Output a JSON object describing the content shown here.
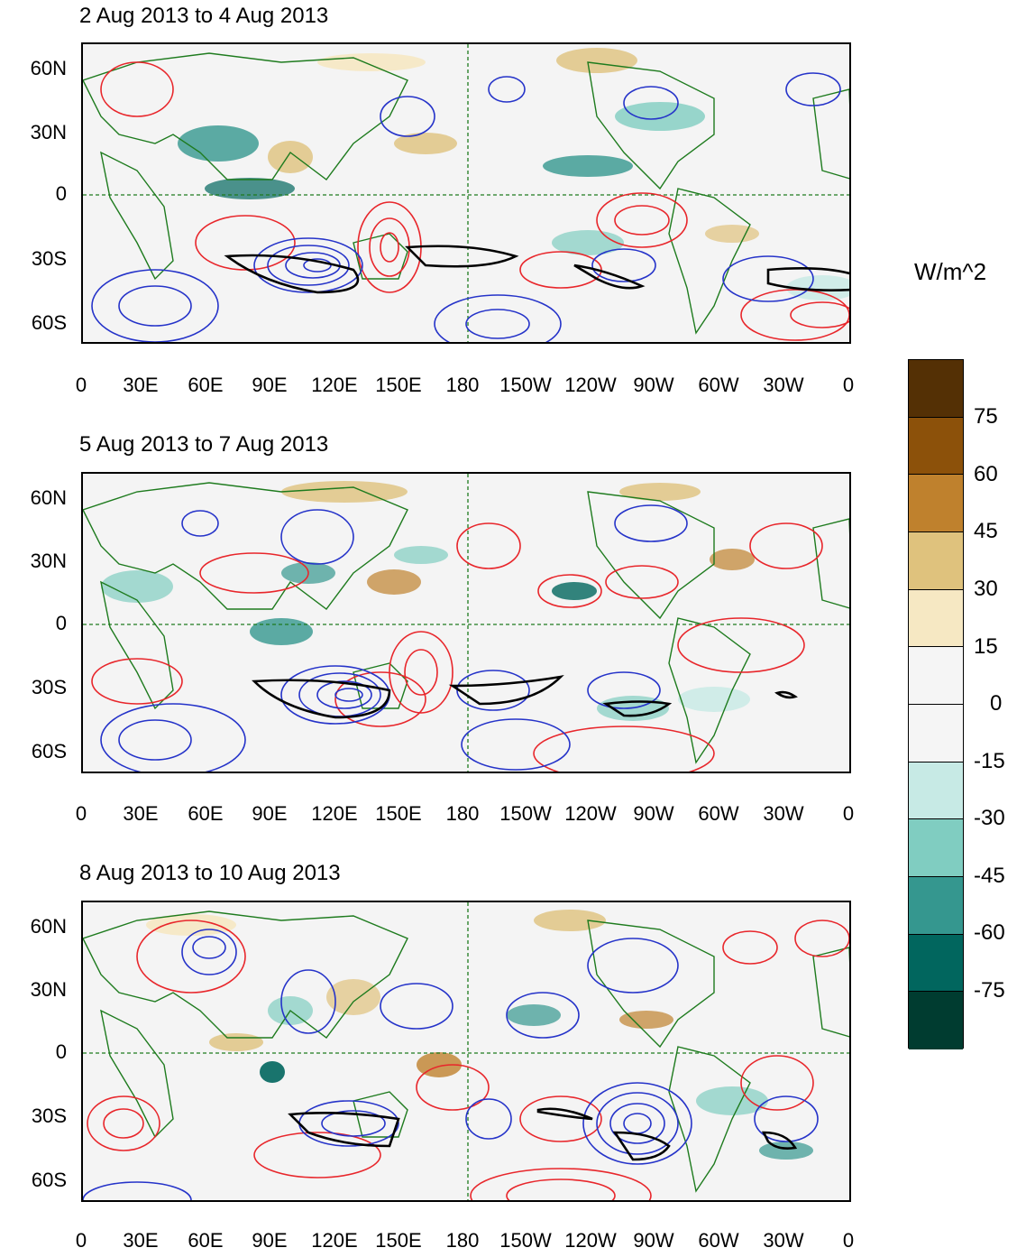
{
  "panels": [
    {
      "title": "2 Aug 2013 to 4 Aug 2013"
    },
    {
      "title": "5 Aug 2013 to 7 Aug 2013"
    },
    {
      "title": "8 Aug 2013 to 10 Aug 2013"
    }
  ],
  "lat_labels": [
    "60N",
    "30N",
    "0",
    "30S",
    "60S"
  ],
  "lon_labels": [
    "0",
    "30E",
    "60E",
    "90E",
    "120E",
    "150E",
    "180",
    "150W",
    "120W",
    "90W",
    "60W",
    "30W",
    "0"
  ],
  "colorbar": {
    "units": "W/m^2",
    "labels": [
      "75",
      "60",
      "45",
      "30",
      "15",
      "0",
      "-15",
      "-30",
      "-45",
      "-60",
      "-75"
    ],
    "colors": [
      "#543005",
      "#8c510a",
      "#bf812d",
      "#dfc27d",
      "#f6e8c3",
      "#f5f5f5",
      "#f5f5f5",
      "#c7eae5",
      "#80cdc1",
      "#35978f",
      "#01665e",
      "#003c30"
    ]
  },
  "colors": {
    "coast": "#1e7b1e",
    "positive_contour": "#e8262b",
    "negative_contour": "#2533c9",
    "highlight_contour": "#000000",
    "reference_line": "#1e7b1e"
  }
}
